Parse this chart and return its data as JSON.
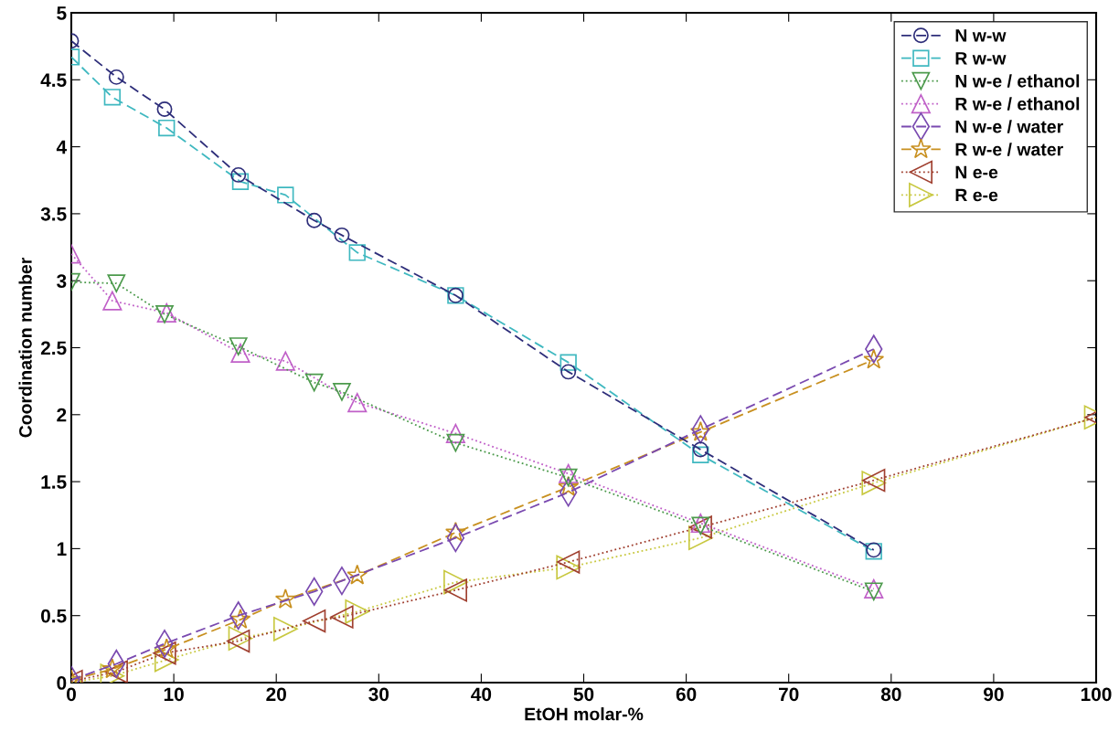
{
  "chart_data": {
    "type": "line",
    "xlabel": "EtOH molar-%",
    "ylabel": "Coordination number",
    "xlim": [
      0,
      100
    ],
    "xticks": [
      0,
      10,
      20,
      30,
      40,
      50,
      60,
      70,
      80,
      90,
      100
    ],
    "ylim": [
      0,
      5
    ],
    "yticks": [
      0,
      0.5,
      1,
      1.5,
      2,
      2.5,
      3,
      3.5,
      4,
      4.5,
      5
    ],
    "grid": false,
    "legend": "top right",
    "series": [
      {
        "name": "N w-w",
        "color": "#2e2e7a",
        "marker": "circle",
        "line_style": "dashed",
        "x": [
          0,
          4.4,
          9.1,
          16.3,
          23.7,
          26.4,
          37.5,
          48.5,
          61.4,
          78.3
        ],
        "values": [
          4.79,
          4.52,
          4.28,
          3.79,
          3.45,
          3.34,
          2.89,
          2.32,
          1.74,
          0.99
        ]
      },
      {
        "name": "R w-w",
        "color": "#3fb8c0",
        "marker": "square",
        "line_style": "dashed",
        "x": [
          0,
          4.0,
          9.3,
          16.5,
          20.9,
          27.9,
          37.5,
          48.5,
          61.4,
          78.3
        ],
        "values": [
          4.67,
          4.37,
          4.14,
          3.74,
          3.64,
          3.21,
          2.89,
          2.39,
          1.7,
          0.98
        ]
      },
      {
        "name": "N w-e / ethanol",
        "color": "#4c9a4c",
        "marker": "triangle_down",
        "line_style": "dotted",
        "x": [
          0,
          4.4,
          9.1,
          16.3,
          23.7,
          26.4,
          37.5,
          48.5,
          61.4,
          78.3
        ],
        "values": [
          2.99,
          2.98,
          2.75,
          2.51,
          2.24,
          2.17,
          1.79,
          1.53,
          1.17,
          0.68
        ]
      },
      {
        "name": "R w-e / ethanol",
        "color": "#c060c8",
        "marker": "triangle",
        "line_style": "dotted",
        "x": [
          0,
          4.0,
          9.3,
          16.5,
          20.9,
          27.9,
          37.5,
          48.5,
          61.4,
          78.3
        ],
        "values": [
          3.2,
          2.85,
          2.76,
          2.46,
          2.4,
          2.09,
          1.86,
          1.56,
          1.19,
          0.7
        ]
      },
      {
        "name": "N w-e / water",
        "color": "#7a4ab0",
        "marker": "diamond",
        "line_style": "dashed",
        "x": [
          0,
          4.4,
          9.1,
          16.3,
          23.7,
          26.4,
          37.5,
          48.5,
          61.4,
          78.3
        ],
        "values": [
          0.02,
          0.14,
          0.29,
          0.5,
          0.68,
          0.76,
          1.08,
          1.42,
          1.89,
          2.49
        ]
      },
      {
        "name": "R w-e / water",
        "color": "#c89020",
        "marker": "star",
        "line_style": "dashed",
        "x": [
          0,
          4.0,
          9.3,
          16.5,
          20.9,
          27.9,
          37.5,
          48.5,
          61.4,
          78.3
        ],
        "values": [
          0.02,
          0.1,
          0.25,
          0.47,
          0.62,
          0.8,
          1.12,
          1.46,
          1.87,
          2.41
        ]
      },
      {
        "name": "N e-e",
        "color": "#a04030",
        "marker": "triangle_left",
        "line_style": "dotted",
        "x": [
          0,
          4.4,
          9.1,
          16.3,
          23.7,
          26.4,
          37.5,
          48.5,
          61.4,
          78.3,
          100
        ],
        "values": [
          0.01,
          0.08,
          0.22,
          0.31,
          0.46,
          0.49,
          0.69,
          0.9,
          1.16,
          1.51,
          1.98
        ]
      },
      {
        "name": "R e-e",
        "color": "#c8c840",
        "marker": "triangle_right",
        "line_style": "dotted",
        "x": [
          0,
          4.0,
          9.3,
          16.5,
          20.9,
          27.9,
          37.5,
          48.5,
          61.4,
          78.3,
          100
        ],
        "values": [
          0.0,
          0.05,
          0.17,
          0.33,
          0.4,
          0.53,
          0.75,
          0.86,
          1.08,
          1.49,
          1.98
        ]
      }
    ]
  }
}
